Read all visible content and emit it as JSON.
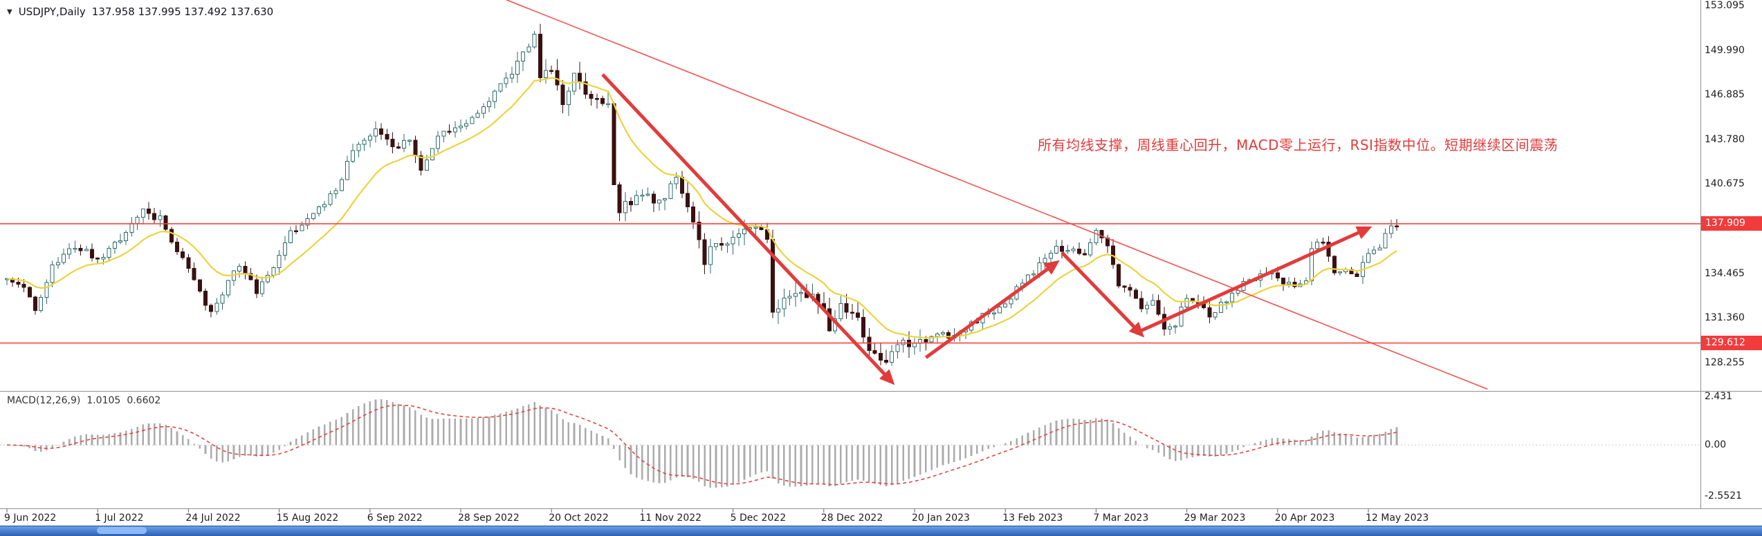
{
  "window": {
    "dropdown_icon": "▼",
    "symbol_label": "USDJPY,Daily",
    "ohlc": "137.958 137.995 137.492 137.630"
  },
  "annotation_text": "所有均线支撑，周线重心回升，MACD零上运行，RSI指数中位。短期继续区间震荡",
  "price_axis": {
    "labels": [
      "153.095",
      "149.990",
      "146.885",
      "143.780",
      "140.675",
      "134.465",
      "131.360",
      "128.255"
    ]
  },
  "macd_panel": {
    "label_name": "MACD(12,26,9)",
    "label_main": "1.0105",
    "label_signal": "0.6602",
    "axis": [
      "2.431",
      "0.00",
      "-2.5521"
    ]
  },
  "time_axis": {
    "candles_per_label": 16,
    "labels": [
      "9 Jun 2022",
      "1 Jul 2022",
      "24 Jul 2022",
      "15 Aug 2022",
      "6 Sep 2022",
      "28 Sep 2022",
      "20 Oct 2022",
      "11 Nov 2022",
      "5 Dec 2022",
      "28 Dec 2022",
      "20 Jan 2023",
      "13 Feb 2023",
      "7 Mar 2023",
      "29 Mar 2023",
      "20 Apr 2023",
      "12 May 2023"
    ]
  },
  "colors": {
    "candle_bull_border": "#2e6b6b",
    "candle_bull_fill": "#ffffff",
    "candle_bear_border": "#3a1010",
    "candle_bear_fill": "#3a1010",
    "ma_line": "#ecd33f",
    "macd_histogram": "#ababab",
    "macd_signal": "#e04545",
    "macd_zero": "#c9c9c9",
    "hline": "#ff4040",
    "trendline": "#f05050",
    "arrow": "#e23b3b",
    "separator": "#909090",
    "badge_bg": "#f23b3b"
  },
  "chart_data": {
    "type": "candlestick",
    "symbol": "USDJPY",
    "timeframe": "Daily",
    "title": "USDJPY Daily with MA, trend arrows and MACD(12,26,9)",
    "current_ohlc": {
      "open": 137.958,
      "high": 137.995,
      "low": 137.492,
      "close": 137.63
    },
    "price_axis_values": [
      153.095,
      149.99,
      146.885,
      143.78,
      140.675,
      134.465,
      131.36,
      128.255
    ],
    "ylim": [
      126.3,
      153.5
    ],
    "candle_count": 246,
    "price_anchors": [
      [
        0,
        134.2
      ],
      [
        3,
        133.5
      ],
      [
        5,
        131.9
      ],
      [
        8,
        134.9
      ],
      [
        11,
        136.4
      ],
      [
        14,
        136.1
      ],
      [
        16,
        135.3
      ],
      [
        19,
        136.5
      ],
      [
        24,
        138.9
      ],
      [
        27,
        138.2
      ],
      [
        30,
        136.2
      ],
      [
        33,
        134.0
      ],
      [
        36,
        131.7
      ],
      [
        38,
        133.2
      ],
      [
        41,
        135.1
      ],
      [
        44,
        133.3
      ],
      [
        47,
        135.0
      ],
      [
        50,
        137.2
      ],
      [
        54,
        138.6
      ],
      [
        58,
        140.3
      ],
      [
        61,
        142.9
      ],
      [
        65,
        144.5
      ],
      [
        68,
        143.2
      ],
      [
        71,
        143.8
      ],
      [
        73,
        141.4
      ],
      [
        76,
        144.2
      ],
      [
        79,
        144.7
      ],
      [
        82,
        145.3
      ],
      [
        86,
        146.9
      ],
      [
        90,
        148.9
      ],
      [
        93,
        151.3
      ],
      [
        94,
        147.9
      ],
      [
        96,
        148.8
      ],
      [
        98,
        146.6
      ],
      [
        100,
        148.1
      ],
      [
        103,
        146.7
      ],
      [
        106,
        146.3
      ],
      [
        107,
        141.0
      ],
      [
        108,
        138.9
      ],
      [
        110,
        139.6
      ],
      [
        112,
        140.3
      ],
      [
        115,
        139.2
      ],
      [
        118,
        141.2
      ],
      [
        121,
        138.1
      ],
      [
        123,
        135.4
      ],
      [
        125,
        136.8
      ],
      [
        128,
        136.6
      ],
      [
        131,
        137.5
      ],
      [
        134,
        137.0
      ],
      [
        135,
        131.8
      ],
      [
        137,
        132.4
      ],
      [
        140,
        133.3
      ],
      [
        143,
        132.7
      ],
      [
        145,
        130.6
      ],
      [
        147,
        132.6
      ],
      [
        150,
        131.2
      ],
      [
        152,
        128.9
      ],
      [
        154,
        128.2
      ],
      [
        156,
        128.9
      ],
      [
        158,
        129.6
      ],
      [
        161,
        129.9
      ],
      [
        164,
        130.2
      ],
      [
        167,
        130.0
      ],
      [
        170,
        131.1
      ],
      [
        173,
        131.6
      ],
      [
        176,
        132.4
      ],
      [
        179,
        133.8
      ],
      [
        182,
        135.0
      ],
      [
        185,
        136.3
      ],
      [
        188,
        136.1
      ],
      [
        190,
        135.9
      ],
      [
        192,
        137.2
      ],
      [
        194,
        136.2
      ],
      [
        196,
        133.6
      ],
      [
        198,
        133.2
      ],
      [
        200,
        131.9
      ],
      [
        202,
        132.4
      ],
      [
        204,
        130.7
      ],
      [
        206,
        130.9
      ],
      [
        208,
        132.9
      ],
      [
        210,
        132.5
      ],
      [
        212,
        131.6
      ],
      [
        215,
        132.6
      ],
      [
        218,
        133.8
      ],
      [
        221,
        134.4
      ],
      [
        224,
        134.2
      ],
      [
        227,
        133.5
      ],
      [
        229,
        134.1
      ],
      [
        230,
        136.2
      ],
      [
        232,
        136.8
      ],
      [
        234,
        134.3
      ],
      [
        236,
        134.9
      ],
      [
        238,
        134.4
      ],
      [
        240,
        135.7
      ],
      [
        242,
        136.2
      ],
      [
        244,
        137.9
      ],
      [
        245,
        137.6
      ]
    ],
    "hlines": [
      {
        "price": 137.909,
        "label": "137.909"
      },
      {
        "price": 129.612,
        "label": "129.612"
      }
    ],
    "trendline": {
      "from": {
        "index": 88,
        "price": 153.5
      },
      "to": {
        "index": 261,
        "price": 126.4
      }
    },
    "arrows": [
      {
        "direction": "down",
        "from": {
          "index": 105,
          "price": 148.3
        },
        "to": {
          "index": 156,
          "price": 126.9
        }
      },
      {
        "direction": "up",
        "from": {
          "index": 162,
          "price": 128.6
        },
        "to": {
          "index": 185,
          "price": 135.2
        }
      },
      {
        "direction": "down",
        "from": {
          "index": 186,
          "price": 135.9
        },
        "to": {
          "index": 200,
          "price": 130.2
        }
      },
      {
        "direction": "up",
        "from": {
          "index": 199,
          "price": 130.3
        },
        "to": {
          "index": 240,
          "price": 137.6
        }
      }
    ],
    "macd": {
      "type": "histogram+signal",
      "params": [
        12,
        26,
        9
      ],
      "main_value": 1.0105,
      "signal_value": 0.6602,
      "axis_range": [
        -2.5521,
        2.431
      ]
    }
  }
}
